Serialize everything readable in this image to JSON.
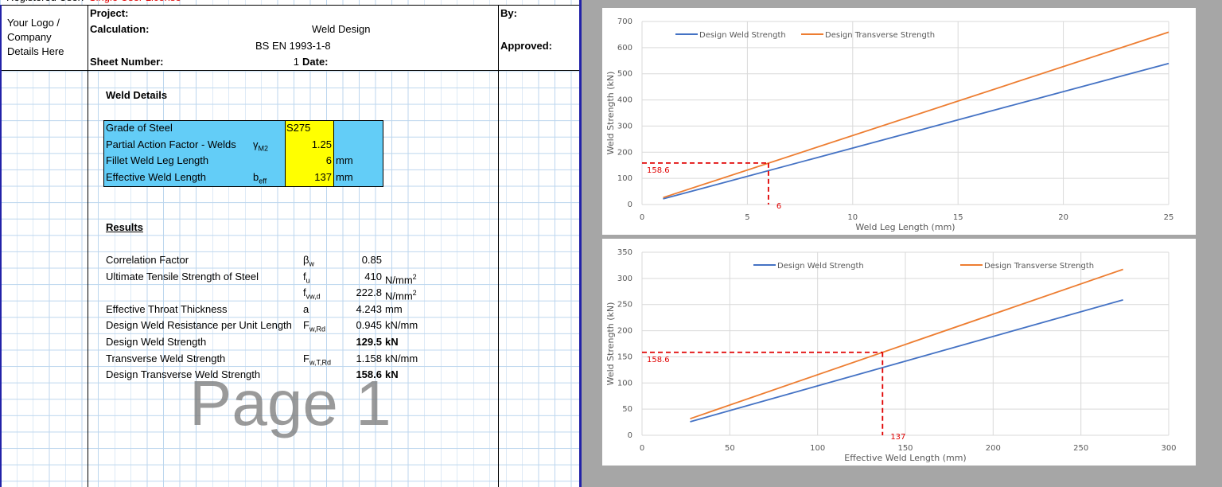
{
  "top_bar": {
    "user_label": "Registered User:",
    "license": "Single User License"
  },
  "header": {
    "logo": [
      "Your Logo /",
      "Company",
      "Details Here"
    ],
    "project_label": "Project:",
    "calculation_label": "Calculation:",
    "calculation": "Weld Design",
    "standard": "BS EN 1993-1-8",
    "sheet_number_label": "Sheet Number:",
    "sheet_number": 1,
    "date_label": "Date:",
    "by_label": "By:",
    "approved_label": "Approved:"
  },
  "weld_details": {
    "title": "Weld Details",
    "rows": [
      {
        "label": "Grade of Steel",
        "value": "S275"
      },
      {
        "label": "Partial Action Factor - Welds",
        "symbol": {
          "main": "γ",
          "sub": "M2"
        },
        "value": 1.25
      },
      {
        "label": "Fillet Weld Leg Length",
        "value": 6,
        "unit": "mm"
      },
      {
        "label": "Effective Weld Length",
        "symbol": {
          "main": "b",
          "sub": "eff"
        },
        "value": 137,
        "unit": "mm"
      }
    ]
  },
  "results": {
    "title": "Results",
    "rows": [
      {
        "label": "Correlation Factor",
        "symbol": {
          "main": "β",
          "sub": "w"
        },
        "value": 0.85
      },
      {
        "label": "Ultimate Tensile Strength of Steel",
        "symbol": {
          "main": "f",
          "sub": "u"
        },
        "value": 410,
        "unit": {
          "main": "N/mm",
          "sup": "2"
        }
      },
      {
        "symbol": {
          "main": "f",
          "sub": "vw,d"
        },
        "value": 222.8,
        "unit": {
          "main": "N/mm",
          "sup": "2"
        }
      },
      {
        "label": "Effective Throat Thickness",
        "symbol": {
          "main": "a"
        },
        "value": 4.243,
        "unit": "mm"
      },
      {
        "label": "Design Weld Resistance per Unit Length",
        "symbol": {
          "main": "F",
          "sub": "w,Rd"
        },
        "value": 0.945,
        "unit": "kN/mm"
      },
      {
        "label": "Design Weld Strength",
        "value": 129.5,
        "unit": "kN",
        "bold": true
      },
      {
        "label": "Transverse Weld Strength",
        "symbol": {
          "main": "F",
          "sub": "w,T,Rd"
        },
        "value": 1.158,
        "unit": "kN/mm"
      },
      {
        "label": "Design Transverse Weld Strength",
        "value": 158.6,
        "unit": "kN",
        "bold": true
      }
    ]
  },
  "watermark": "Page 1",
  "charts": [
    {
      "type": "line",
      "x_label": "Weld Leg Length (mm)",
      "y_label": "Weld Strength (kN)",
      "x": [
        1,
        25
      ],
      "xlim": [
        0,
        25
      ],
      "ylim": [
        0,
        700
      ],
      "xticks": [
        0,
        5,
        10,
        15,
        20,
        25
      ],
      "yticks": [
        0,
        100,
        200,
        300,
        400,
        500,
        600,
        700
      ],
      "grid": true,
      "legend": "top",
      "series": [
        {
          "name": "Design Weld Strength",
          "color": "#4472c4",
          "values": [
            21.6,
            539.6
          ]
        },
        {
          "name": "Design Transverse Strength",
          "color": "#ed7d31",
          "values": [
            26.4,
            659.4
          ]
        }
      ],
      "annotation": {
        "x": 6,
        "y": 158.6,
        "color": "#e00000"
      }
    },
    {
      "type": "line",
      "x_label": "Effective Weld Length (mm)",
      "y_label": "Weld Strength (kN)",
      "x": [
        27.4,
        274
      ],
      "xlim": [
        0,
        300
      ],
      "ylim": [
        0,
        350
      ],
      "xticks": [
        0,
        50,
        100,
        150,
        200,
        250,
        300
      ],
      "yticks": [
        0,
        50,
        100,
        150,
        200,
        250,
        300,
        350
      ],
      "grid": true,
      "legend": "top",
      "series": [
        {
          "name": "Design Weld Strength",
          "color": "#4472c4",
          "values": [
            25.9,
            258.9
          ]
        },
        {
          "name": "Design Transverse Strength",
          "color": "#ed7d31",
          "values": [
            31.7,
            317.3
          ]
        }
      ],
      "annotation": {
        "x": 137,
        "y": 158.6,
        "color": "#e00000"
      }
    }
  ]
}
